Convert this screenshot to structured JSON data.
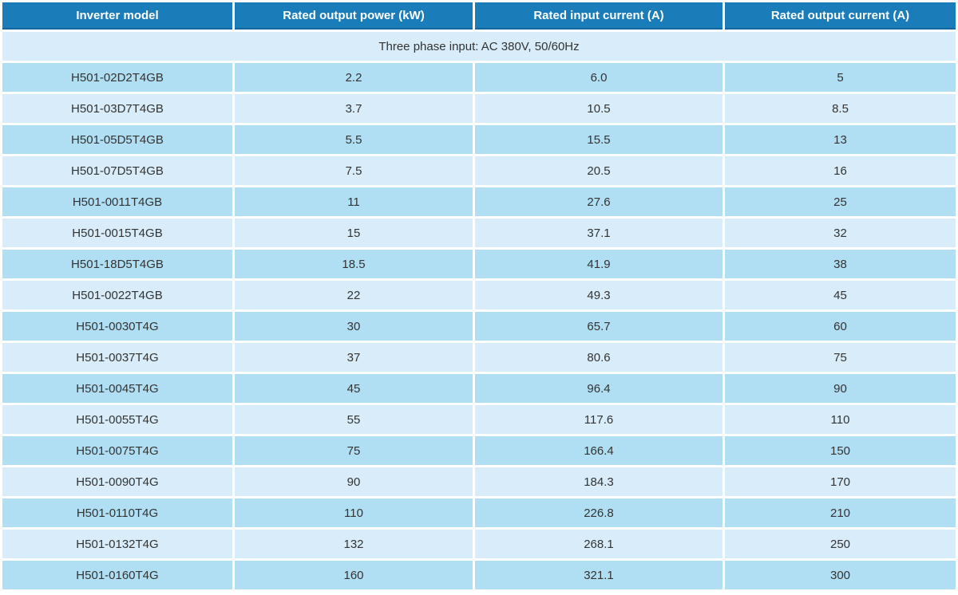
{
  "table": {
    "columns": [
      "Inverter model",
      "Rated output power (kW)",
      "Rated input current (A)",
      "Rated output current (A)"
    ],
    "group_header": "Three phase input: AC 380V, 50/60Hz",
    "rows": [
      [
        "H501-02D2T4GB",
        "2.2",
        "6.0",
        "5"
      ],
      [
        "H501-03D7T4GB",
        "3.7",
        "10.5",
        "8.5"
      ],
      [
        "H501-05D5T4GB",
        "5.5",
        "15.5",
        "13"
      ],
      [
        "H501-07D5T4GB",
        "7.5",
        "20.5",
        "16"
      ],
      [
        "H501-0011T4GB",
        "11",
        "27.6",
        "25"
      ],
      [
        "H501-0015T4GB",
        "15",
        "37.1",
        "32"
      ],
      [
        "H501-18D5T4GB",
        "18.5",
        "41.9",
        "38"
      ],
      [
        "H501-0022T4GB",
        "22",
        "49.3",
        "45"
      ],
      [
        "H501-0030T4G",
        "30",
        "65.7",
        "60"
      ],
      [
        "H501-0037T4G",
        "37",
        "80.6",
        "75"
      ],
      [
        "H501-0045T4G",
        "45",
        "96.4",
        "90"
      ],
      [
        "H501-0055T4G",
        "55",
        "117.6",
        "110"
      ],
      [
        "H501-0075T4G",
        "75",
        "166.4",
        "150"
      ],
      [
        "H501-0090T4G",
        "90",
        "184.3",
        "170"
      ],
      [
        "H501-0110T4G",
        "110",
        "226.8",
        "210"
      ],
      [
        "H501-0132T4G",
        "132",
        "268.1",
        "250"
      ],
      [
        "H501-0160T4G",
        "160",
        "321.1",
        "300"
      ]
    ]
  },
  "colors": {
    "header_bg": "#1a7dba",
    "header_border": "#15669e",
    "row_dark": "#b0dff4",
    "row_light": "#d8edf9",
    "text": "#333333",
    "header_text": "#ffffff"
  },
  "chart_data": {
    "type": "table",
    "title": "Three phase input: AC 380V, 50/60Hz",
    "columns": [
      "Inverter model",
      "Rated output power (kW)",
      "Rated input current (A)",
      "Rated output current (A)"
    ],
    "series": [
      {
        "name": "Inverter model",
        "values": [
          "H501-02D2T4GB",
          "H501-03D7T4GB",
          "H501-05D5T4GB",
          "H501-07D5T4GB",
          "H501-0011T4GB",
          "H501-0015T4GB",
          "H501-18D5T4GB",
          "H501-0022T4GB",
          "H501-0030T4G",
          "H501-0037T4G",
          "H501-0045T4G",
          "H501-0055T4G",
          "H501-0075T4G",
          "H501-0090T4G",
          "H501-0110T4G",
          "H501-0132T4G",
          "H501-0160T4G"
        ]
      },
      {
        "name": "Rated output power (kW)",
        "values": [
          2.2,
          3.7,
          5.5,
          7.5,
          11,
          15,
          18.5,
          22,
          30,
          37,
          45,
          55,
          75,
          90,
          110,
          132,
          160
        ]
      },
      {
        "name": "Rated input current (A)",
        "values": [
          6.0,
          10.5,
          15.5,
          20.5,
          27.6,
          37.1,
          41.9,
          49.3,
          65.7,
          80.6,
          96.4,
          117.6,
          166.4,
          184.3,
          226.8,
          268.1,
          321.1
        ]
      },
      {
        "name": "Rated output current (A)",
        "values": [
          5,
          8.5,
          13,
          16,
          25,
          32,
          38,
          45,
          60,
          75,
          90,
          110,
          150,
          170,
          210,
          250,
          300
        ]
      }
    ]
  }
}
